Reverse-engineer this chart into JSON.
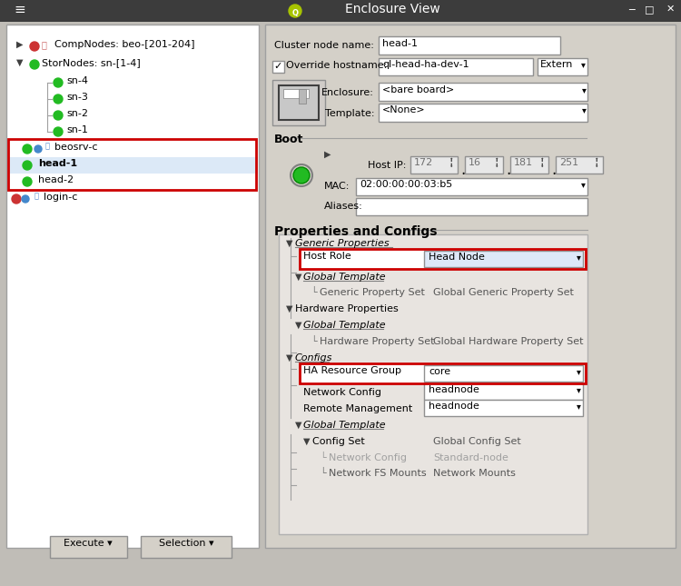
{
  "title": "Enclosure View",
  "bg_color": "#c0bdb7",
  "panel_bg": "#d4d0c8",
  "white": "#ffffff",
  "red_highlight": "#cc0000",
  "font_size": 9,
  "small_font": 8,
  "fig_w": 7.5,
  "fig_h": 6.45,
  "dpi": 100,
  "field_cluster_node_name": "head-1",
  "field_override_hostname": "ql-head-ha-dev-1",
  "field_override_suffix": "Extern",
  "field_enclosure": "<bare board>",
  "field_template": "<None>",
  "field_host_ip": [
    "172",
    "16",
    "181",
    "251"
  ],
  "field_mac": "02:00:00:00:03:b5",
  "prop_host_role": "Head Node",
  "prop_ha_resource_group": "core",
  "prop_network_config": "headnode",
  "prop_remote_management": "headnode"
}
